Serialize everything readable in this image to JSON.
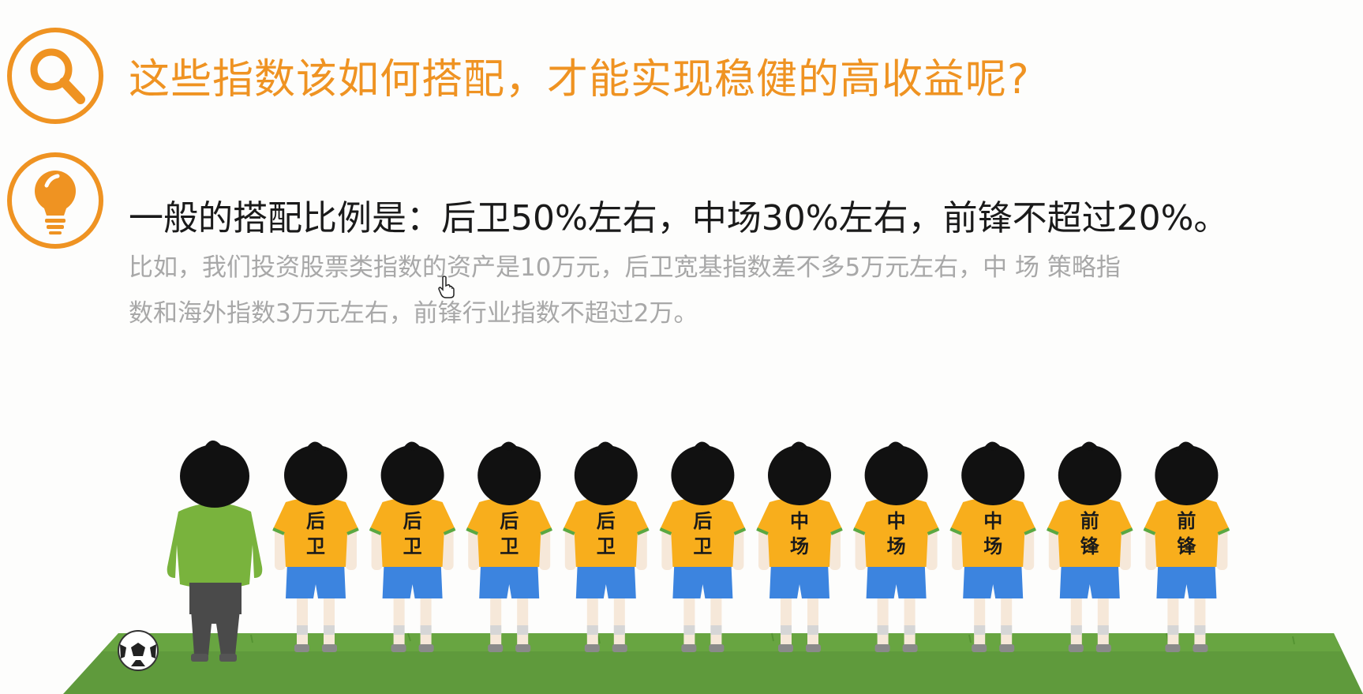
{
  "question": {
    "icon": "search-icon",
    "text": "这些指数该如何搭配，才能实现稳健的高收益呢?"
  },
  "answer": {
    "icon": "lightbulb-icon",
    "headline": "一般的搭配比例是：后卫50%左右，中场30%左右，前锋不超过20%。",
    "line1": "比如，我们投资股票类指数的资产是10万元，后卫宽基指数差不多5万元左右，中 场 策略指",
    "line2": "数和海外指数3万元左右，前锋行业指数不超过2万。"
  },
  "players": [
    {
      "top": "后",
      "bottom": "卫"
    },
    {
      "top": "后",
      "bottom": "卫"
    },
    {
      "top": "后",
      "bottom": "卫"
    },
    {
      "top": "后",
      "bottom": "卫"
    },
    {
      "top": "后",
      "bottom": "卫"
    },
    {
      "top": "中",
      "bottom": "场"
    },
    {
      "top": "中",
      "bottom": "场"
    },
    {
      "top": "中",
      "bottom": "场"
    },
    {
      "top": "前",
      "bottom": "锋"
    },
    {
      "top": "前",
      "bottom": "锋"
    }
  ],
  "colors": {
    "accent": "#ef9322",
    "jersey": "#f8ae1c",
    "shorts": "#3c84df",
    "grass": "#5f9a3c",
    "coach_shirt": "#79b33d"
  }
}
